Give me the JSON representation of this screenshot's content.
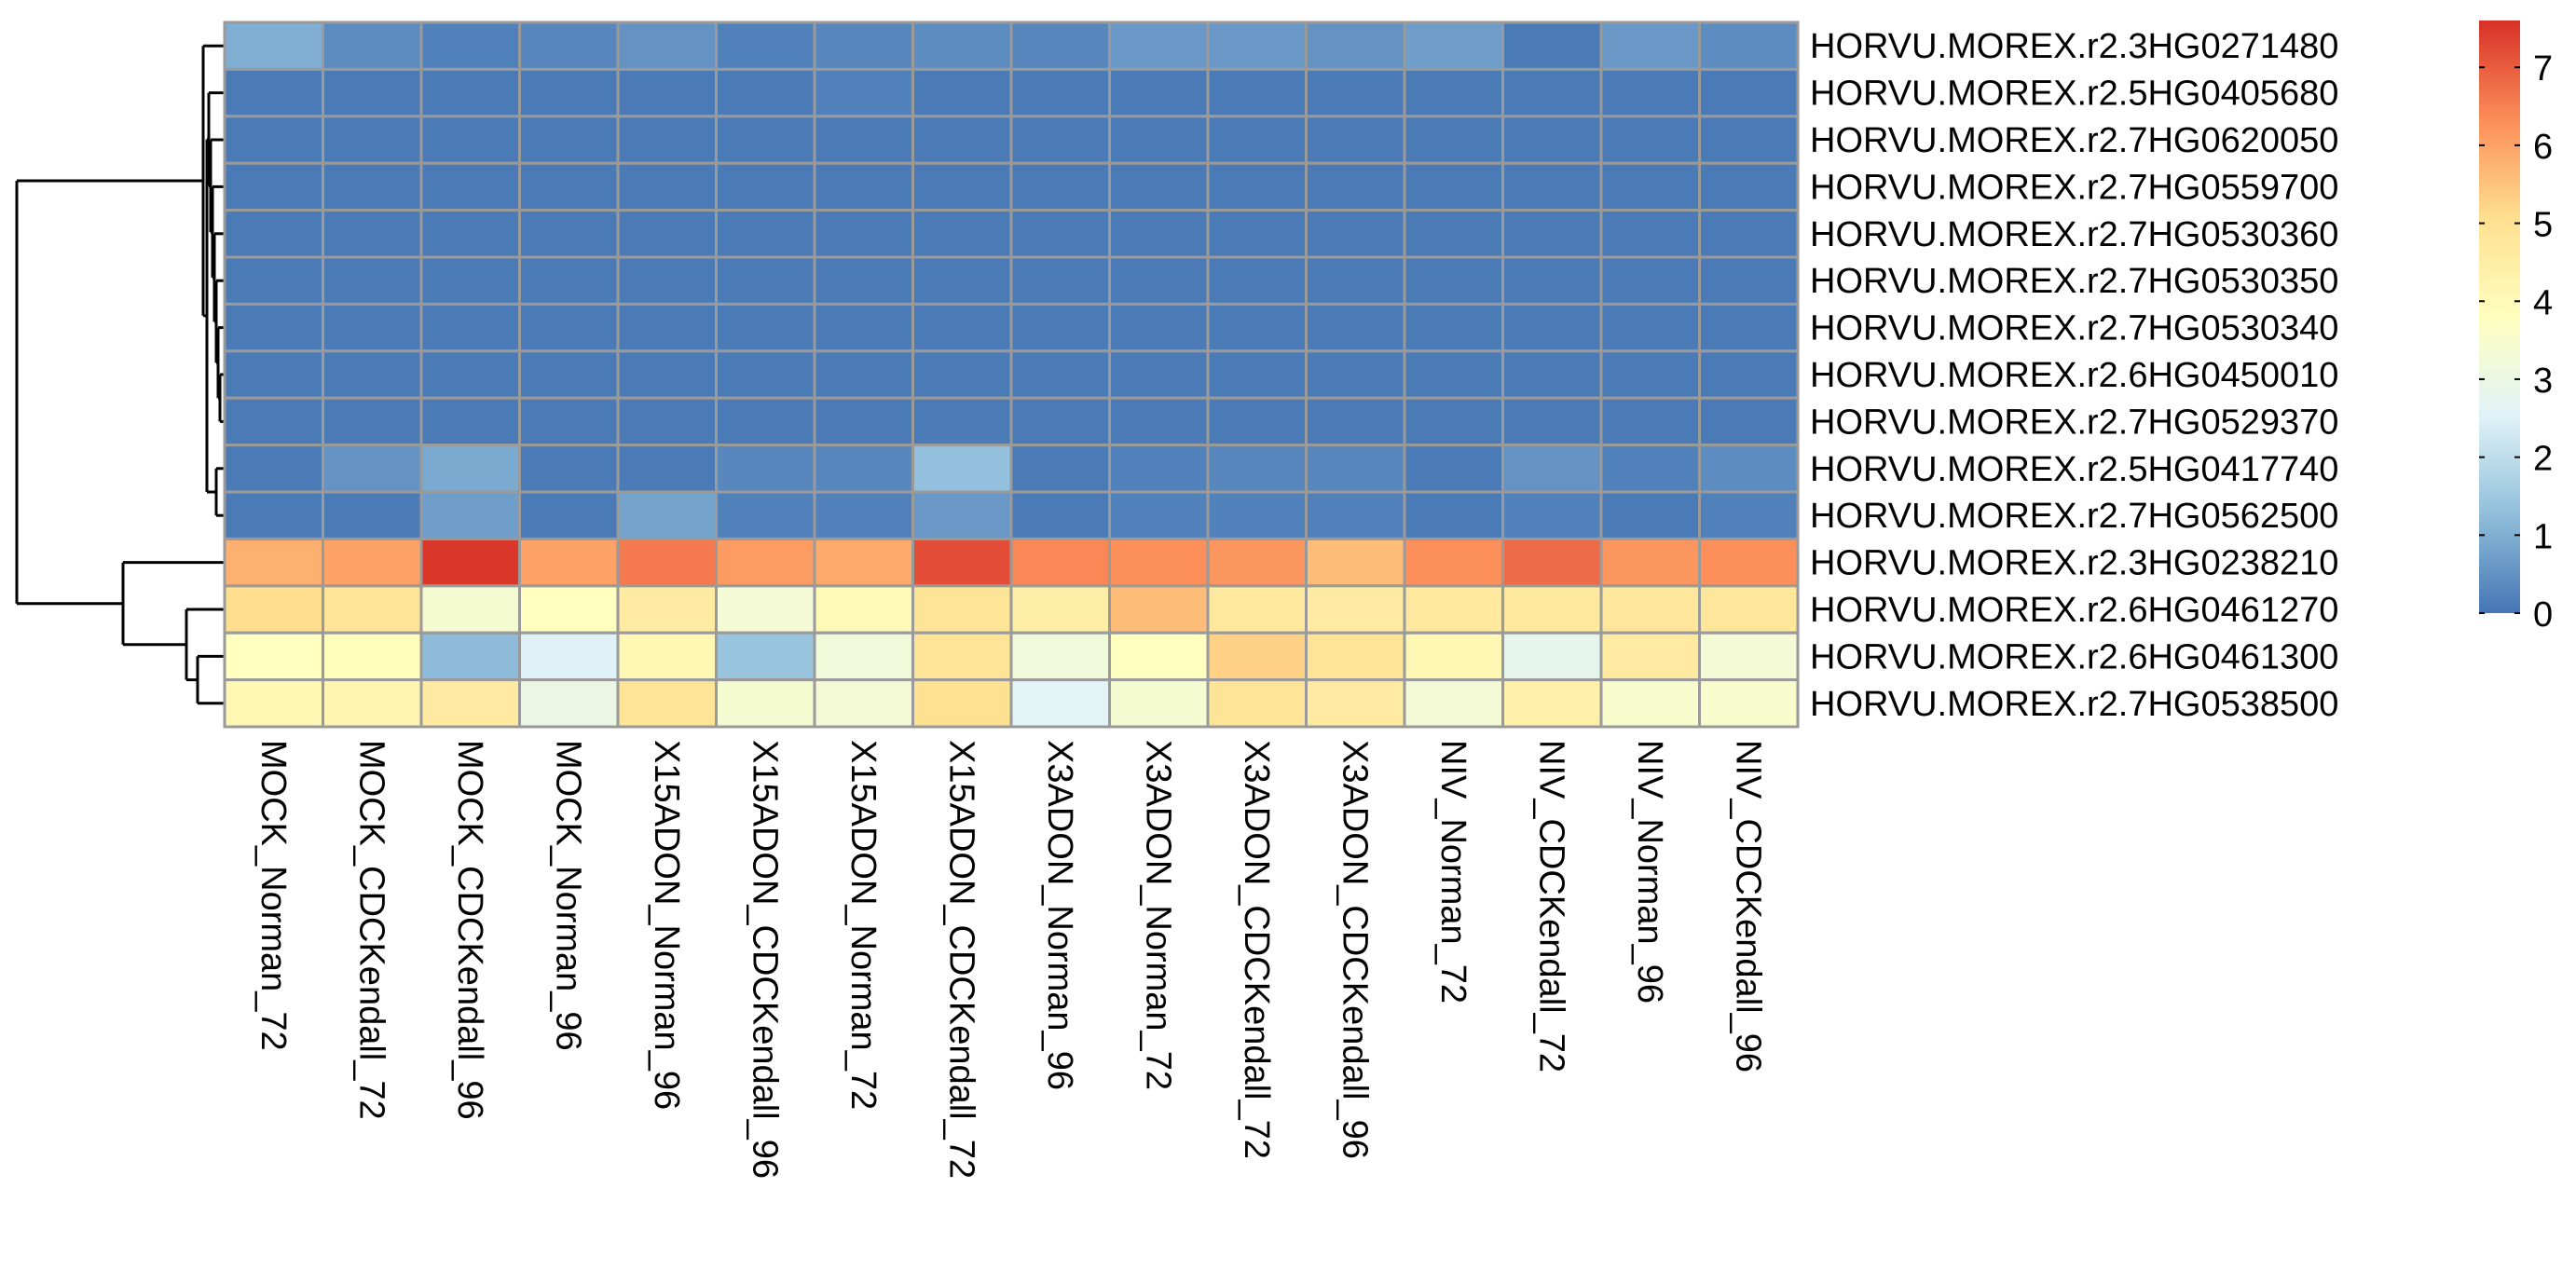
{
  "chart_data": {
    "type": "heatmap",
    "title": "",
    "columns": [
      "MOCK_Norman_72",
      "MOCK_CDCKendall_72",
      "MOCK_CDCKendall_96",
      "MOCK_Norman_96",
      "X15ADON_Norman_96",
      "X15ADON_CDCKendall_96",
      "X15ADON_Norman_72",
      "X15ADON_CDCKendall_72",
      "X3ADON_Norman_96",
      "X3ADON_Norman_72",
      "X3ADON_CDCKendall_72",
      "X3ADON_CDCKendall_96",
      "NIV_Norman_72",
      "NIV_CDCKendall_72",
      "NIV_Norman_96",
      "NIV_CDCKendall_96"
    ],
    "rows": [
      "HORVU.MOREX.r2.3HG0271480",
      "HORVU.MOREX.r2.5HG0405680",
      "HORVU.MOREX.r2.7HG0620050",
      "HORVU.MOREX.r2.7HG0559700",
      "HORVU.MOREX.r2.7HG0530360",
      "HORVU.MOREX.r2.7HG0530350",
      "HORVU.MOREX.r2.7HG0530340",
      "HORVU.MOREX.r2.6HG0450010",
      "HORVU.MOREX.r2.7HG0529370",
      "HORVU.MOREX.r2.5HG0417740",
      "HORVU.MOREX.r2.7HG0562500",
      "HORVU.MOREX.r2.3HG0238210",
      "HORVU.MOREX.r2.6HG0461270",
      "HORVU.MOREX.r2.6HG0461300",
      "HORVU.MOREX.r2.7HG0538500"
    ],
    "values": [
      [
        1.0,
        0.4,
        0.2,
        0.3,
        0.5,
        0.2,
        0.3,
        0.4,
        0.3,
        0.6,
        0.6,
        0.5,
        0.7,
        0.1,
        0.6,
        0.4
      ],
      [
        0.1,
        0.1,
        0.1,
        0.1,
        0.1,
        0.1,
        0.2,
        0.1,
        0.1,
        0.1,
        0.1,
        0.1,
        0.1,
        0.1,
        0.1,
        0.1
      ],
      [
        0.1,
        0.1,
        0.1,
        0.1,
        0.1,
        0.1,
        0.1,
        0.1,
        0.1,
        0.1,
        0.1,
        0.1,
        0.1,
        0.1,
        0.1,
        0.1
      ],
      [
        0.1,
        0.1,
        0.1,
        0.1,
        0.1,
        0.1,
        0.1,
        0.1,
        0.1,
        0.1,
        0.1,
        0.1,
        0.1,
        0.1,
        0.1,
        0.1
      ],
      [
        0.1,
        0.1,
        0.1,
        0.1,
        0.1,
        0.1,
        0.1,
        0.1,
        0.1,
        0.1,
        0.1,
        0.1,
        0.1,
        0.1,
        0.1,
        0.1
      ],
      [
        0.1,
        0.1,
        0.1,
        0.1,
        0.1,
        0.1,
        0.1,
        0.1,
        0.1,
        0.1,
        0.1,
        0.1,
        0.1,
        0.1,
        0.1,
        0.1
      ],
      [
        0.1,
        0.1,
        0.1,
        0.1,
        0.1,
        0.1,
        0.1,
        0.1,
        0.1,
        0.1,
        0.1,
        0.1,
        0.1,
        0.1,
        0.1,
        0.1
      ],
      [
        0.1,
        0.1,
        0.1,
        0.1,
        0.1,
        0.1,
        0.1,
        0.1,
        0.1,
        0.1,
        0.1,
        0.1,
        0.1,
        0.1,
        0.1,
        0.1
      ],
      [
        0.1,
        0.1,
        0.1,
        0.1,
        0.1,
        0.1,
        0.1,
        0.1,
        0.1,
        0.1,
        0.1,
        0.1,
        0.1,
        0.1,
        0.1,
        0.1
      ],
      [
        0.1,
        0.5,
        0.9,
        0.1,
        0.1,
        0.3,
        0.3,
        1.3,
        0.1,
        0.2,
        0.3,
        0.3,
        0.1,
        0.5,
        0.2,
        0.4
      ],
      [
        0.1,
        0.1,
        0.7,
        0.1,
        0.8,
        0.2,
        0.2,
        0.6,
        0.1,
        0.2,
        0.2,
        0.2,
        0.1,
        0.2,
        0.1,
        0.2
      ],
      [
        5.8,
        6.0,
        7.5,
        6.0,
        6.6,
        6.1,
        5.9,
        7.2,
        6.4,
        6.3,
        6.2,
        5.6,
        6.3,
        6.8,
        6.2,
        6.3
      ],
      [
        5.1,
        4.9,
        3.4,
        3.8,
        4.6,
        3.3,
        4.0,
        4.9,
        4.5,
        5.6,
        4.7,
        4.6,
        4.7,
        4.7,
        4.8,
        4.8
      ],
      [
        3.8,
        3.9,
        1.2,
        2.5,
        4.1,
        1.4,
        3.2,
        4.9,
        3.2,
        3.8,
        5.3,
        4.9,
        4.1,
        2.8,
        4.6,
        3.3
      ],
      [
        4.1,
        4.2,
        4.6,
        3.0,
        4.9,
        3.4,
        3.3,
        5.0,
        2.6,
        3.4,
        4.9,
        4.6,
        3.3,
        4.4,
        3.5,
        3.5
      ]
    ],
    "colorbar": {
      "ticks": [
        0,
        1,
        2,
        3,
        4,
        5,
        6,
        7
      ],
      "range": [
        0,
        7.6
      ],
      "colors": [
        "#4575B4",
        "#91BFDB",
        "#E0F3F8",
        "#FFFFBF",
        "#FEE090",
        "#FC8D59",
        "#D73027"
      ]
    },
    "row_dendrogram": true
  }
}
